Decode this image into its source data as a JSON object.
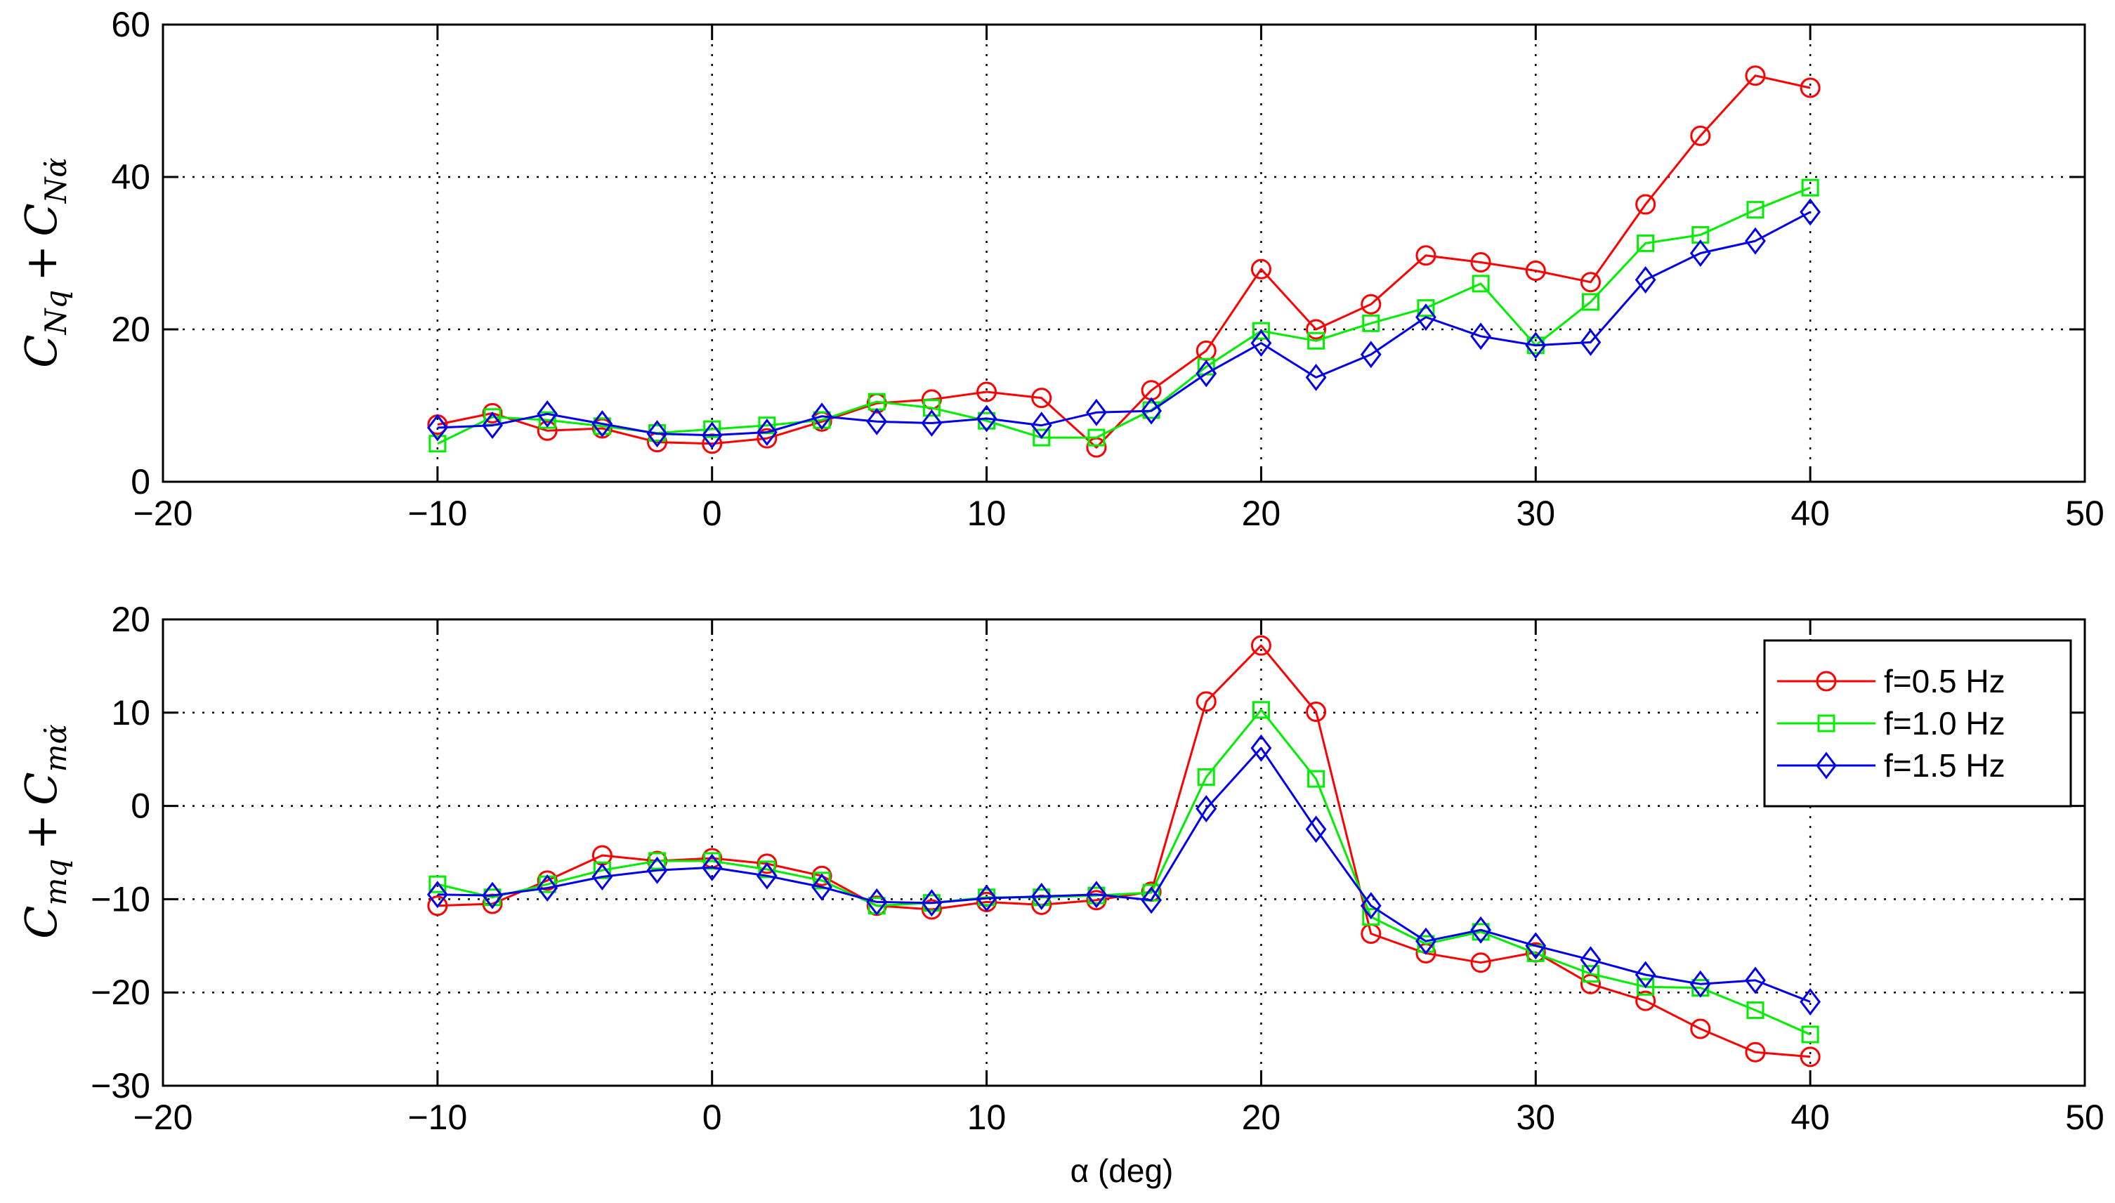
{
  "chart_data": [
    {
      "type": "line",
      "title": "",
      "xlabel": "",
      "ylabel": "C_{Nq} + C_{Nα̇}",
      "ylabel_parts": {
        "a": "C",
        "a_sub": "Nq",
        "plus": "+",
        "b": "C",
        "b_sub": "Nα̇"
      },
      "xlim": [
        -20,
        50
      ],
      "ylim": [
        0,
        60
      ],
      "xticks": [
        -20,
        -10,
        0,
        10,
        20,
        30,
        40,
        50
      ],
      "yticks": [
        0,
        20,
        40,
        60
      ],
      "xtick_labels": [
        "−20",
        "−10",
        "0",
        "10",
        "20",
        "30",
        "40",
        "50"
      ],
      "ytick_labels": [
        "0",
        "20",
        "40",
        "60"
      ],
      "grid": true,
      "x": [
        -10,
        -8,
        -6,
        -4,
        -2,
        0,
        2,
        4,
        6,
        8,
        10,
        12,
        14,
        16,
        18,
        20,
        22,
        24,
        26,
        28,
        30,
        32,
        34,
        36,
        38,
        40
      ],
      "series": [
        {
          "name": "f=0.5 Hz",
          "color": "#ff0000",
          "marker": "circle",
          "values": [
            7.5,
            9.0,
            6.7,
            7.0,
            5.2,
            5.0,
            5.7,
            7.9,
            10.3,
            10.8,
            11.8,
            11.0,
            4.5,
            12.0,
            17.2,
            27.9,
            20.0,
            23.3,
            29.7,
            28.8,
            27.7,
            26.2,
            36.4,
            45.4,
            53.3,
            51.7
          ]
        },
        {
          "name": "f=1.0 Hz",
          "color": "#00ee00",
          "marker": "square",
          "values": [
            5.0,
            8.5,
            8.1,
            7.3,
            6.4,
            6.9,
            7.4,
            8.1,
            10.5,
            9.7,
            8.0,
            5.8,
            5.8,
            9.4,
            15.1,
            19.8,
            18.5,
            20.8,
            22.8,
            26.0,
            17.9,
            23.6,
            31.3,
            32.4,
            35.7,
            38.6
          ]
        },
        {
          "name": "f=1.5 Hz",
          "color": "#0000ee",
          "marker": "diamond",
          "values": [
            7.1,
            7.4,
            8.9,
            7.6,
            6.3,
            6.1,
            6.5,
            8.6,
            7.9,
            7.7,
            8.3,
            7.4,
            9.1,
            9.3,
            14.2,
            18.2,
            13.7,
            16.7,
            21.6,
            19.1,
            17.9,
            18.3,
            26.5,
            30.0,
            31.6,
            35.4
          ]
        }
      ]
    },
    {
      "type": "line",
      "title": "",
      "xlabel": "α (deg)",
      "ylabel": "C_{mq} + C_{mα̇}",
      "ylabel_parts": {
        "a": "C",
        "a_sub": "mq",
        "plus": "+",
        "b": "C",
        "b_sub": "mα̇"
      },
      "xlim": [
        -20,
        50
      ],
      "ylim": [
        -30,
        20
      ],
      "xticks": [
        -20,
        -10,
        0,
        10,
        20,
        30,
        40,
        50
      ],
      "yticks": [
        -30,
        -20,
        -10,
        0,
        10,
        20
      ],
      "xtick_labels": [
        "−20",
        "−10",
        "0",
        "10",
        "20",
        "30",
        "40",
        "50"
      ],
      "ytick_labels": [
        "−30",
        "−20",
        "−10",
        "0",
        "10",
        "20"
      ],
      "grid": true,
      "legend_position": "top-right",
      "x": [
        -10,
        -8,
        -6,
        -4,
        -2,
        0,
        2,
        4,
        6,
        8,
        10,
        12,
        14,
        16,
        18,
        20,
        22,
        24,
        26,
        28,
        30,
        32,
        34,
        36,
        38,
        40
      ],
      "series": [
        {
          "name": "f=0.5 Hz",
          "color": "#ff0000",
          "marker": "circle",
          "values": [
            -10.7,
            -10.5,
            -8.0,
            -5.3,
            -5.9,
            -5.6,
            -6.2,
            -7.5,
            -10.7,
            -11.1,
            -10.3,
            -10.6,
            -10.1,
            -9.2,
            11.2,
            17.2,
            10.1,
            -13.7,
            -15.8,
            -16.8,
            -15.7,
            -19.1,
            -20.9,
            -23.9,
            -26.4,
            -26.9
          ]
        },
        {
          "name": "f=1.0 Hz",
          "color": "#00ee00",
          "marker": "square",
          "values": [
            -8.4,
            -9.8,
            -8.4,
            -6.9,
            -5.9,
            -5.9,
            -6.8,
            -8.0,
            -10.7,
            -10.4,
            -9.8,
            -9.8,
            -9.6,
            -9.3,
            3.1,
            10.3,
            2.9,
            -11.9,
            -14.8,
            -13.5,
            -15.8,
            -18.0,
            -19.4,
            -19.5,
            -21.9,
            -24.5
          ]
        },
        {
          "name": "f=1.5 Hz",
          "color": "#0000ee",
          "marker": "diamond",
          "values": [
            -9.5,
            -9.6,
            -8.8,
            -7.6,
            -6.9,
            -6.6,
            -7.5,
            -8.7,
            -10.3,
            -10.4,
            -9.9,
            -9.7,
            -9.5,
            -10.1,
            -0.3,
            6.2,
            -2.5,
            -10.7,
            -14.5,
            -13.3,
            -15.0,
            -16.5,
            -18.1,
            -19.1,
            -18.7,
            -21.0
          ]
        }
      ]
    }
  ]
}
